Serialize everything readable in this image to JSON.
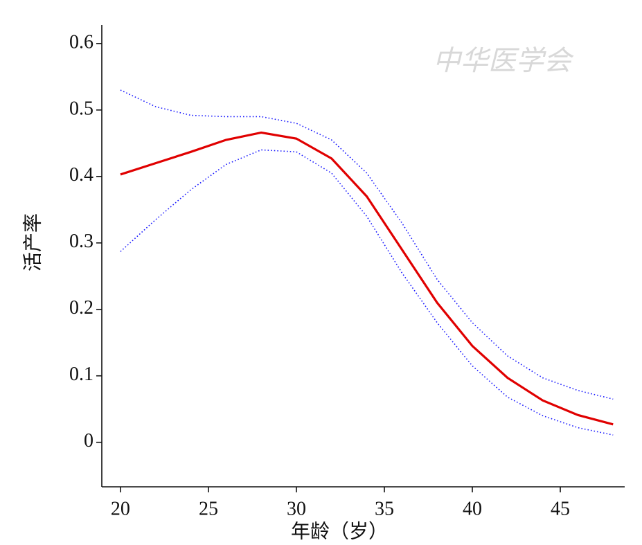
{
  "chart_data": {
    "type": "line",
    "x_label": "年龄（岁）",
    "y_label": "活产率",
    "watermark": "中华医学会",
    "x": [
      20,
      22,
      24,
      26,
      28,
      30,
      32,
      34,
      36,
      38,
      40,
      42,
      44,
      46,
      48
    ],
    "series": [
      {
        "color": "#e00000",
        "style": "solid",
        "values": [
          0.403,
          0.42,
          0.437,
          0.455,
          0.466,
          0.457,
          0.427,
          0.37,
          0.29,
          0.21,
          0.145,
          0.097,
          0.063,
          0.041,
          0.027
        ]
      },
      {
        "color": "#1a1aff",
        "style": "dotted",
        "values": [
          0.53,
          0.505,
          0.492,
          0.49,
          0.49,
          0.48,
          0.455,
          0.405,
          0.33,
          0.245,
          0.18,
          0.13,
          0.097,
          0.078,
          0.065
        ]
      },
      {
        "color": "#1a1aff",
        "style": "dotted",
        "values": [
          0.287,
          0.335,
          0.38,
          0.418,
          0.44,
          0.437,
          0.405,
          0.34,
          0.255,
          0.18,
          0.115,
          0.068,
          0.04,
          0.022,
          0.011
        ]
      }
    ],
    "xlim": [
      18.94,
      48.66
    ],
    "ylim": [
      -0.067,
      0.628
    ],
    "xticks": [
      20,
      25,
      30,
      35,
      40,
      45
    ],
    "yticks": [
      0,
      0.1,
      0.2,
      0.3,
      0.4,
      0.5,
      0.6
    ],
    "grid": false
  }
}
